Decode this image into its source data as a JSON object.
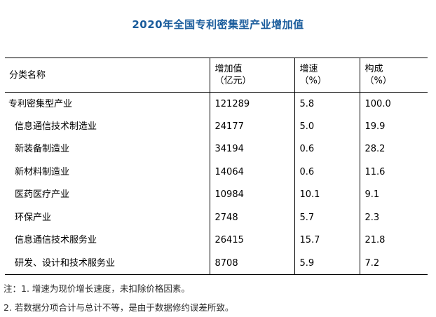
{
  "page": {
    "title": "2020年全国专利密集型产业增加值"
  },
  "colors": {
    "title_blue": "#1A5C9C",
    "border": "#000000",
    "background": "#FFFFFF"
  },
  "table": {
    "headers": {
      "category": "分类名称",
      "value_line1": "增加值",
      "value_line2": "（亿元）",
      "growth_line1": "增速",
      "growth_line2": "（%）",
      "share_line1": "构成",
      "share_line2": "（%）"
    },
    "rows": [
      {
        "label": "专利密集型产业",
        "value": "121289",
        "growth": "5.8",
        "share": "100.0"
      },
      {
        "label": "信息通信技术制造业",
        "value": "24177",
        "growth": "5.0",
        "share": "19.9"
      },
      {
        "label": "新装备制造业",
        "value": "34194",
        "growth": "0.6",
        "share": "28.2"
      },
      {
        "label": "新材料制造业",
        "value": "14064",
        "growth": "0.6",
        "share": "11.6"
      },
      {
        "label": "医药医疗产业",
        "value": "10984",
        "growth": "10.1",
        "share": "9.1"
      },
      {
        "label": "环保产业",
        "value": "2748",
        "growth": "5.7",
        "share": "2.3"
      },
      {
        "label": "信息通信技术服务业",
        "value": "26415",
        "growth": "15.7",
        "share": "21.8"
      },
      {
        "label": "研发、设计和技术服务业",
        "value": "8708",
        "growth": "5.9",
        "share": "7.2"
      }
    ]
  },
  "notes": {
    "line1": "注：1. 增速为现价增长速度，未扣除价格因素。",
    "line2": "2. 若数据分项合计与总计不等，是由于数据修约误差所致。"
  }
}
